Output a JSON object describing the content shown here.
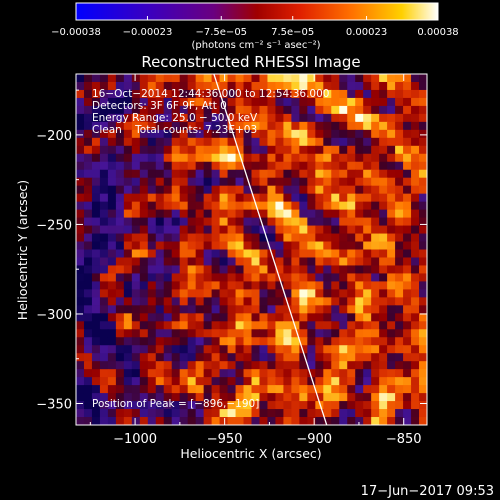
{
  "chart_data": {
    "type": "heatmap",
    "title": "Reconstructed RHESSI Image",
    "xlabel": "Heliocentric X (arcsec)",
    "ylabel": "Heliocentric Y (arcsec)",
    "xlim": [
      -1033,
      -837
    ],
    "ylim": [
      -362,
      -166
    ],
    "xticks": [
      -1000,
      -950,
      -900,
      -850
    ],
    "xtick_labels": [
      "−1000",
      "−950",
      "−900",
      "−850"
    ],
    "yticks": [
      -200,
      -250,
      -300,
      -350
    ],
    "ytick_labels": [
      "−200",
      "−250",
      "−300",
      "−350"
    ],
    "colorbar": {
      "range": [
        -0.00038,
        0.00038
      ],
      "ticks": [
        -0.00038,
        -0.00023,
        -7.5e-05,
        7.5e-05,
        0.00023,
        0.00038
      ],
      "tick_labels": [
        "−0.00038",
        "−0.00023",
        "−7.5e−05",
        "7.5e−05",
        "0.00023",
        "0.00038"
      ],
      "unit_label": "(photons cm⁻² s⁻¹ asec⁻²)",
      "colormap": "blue-purple-red-orange-yellow-white"
    },
    "annotations": {
      "time_range": "16−Oct−2014 12:44:36.000 to 12:54:36.000",
      "detectors": "Detectors: 3F 6F 9F, Att 0",
      "energy_range": "Energy Range: 25.0 − 50.0 keV",
      "clean_counts": "Clean    Total counts: 7.23E+03",
      "peak_position": "Position of Peak = [−896,−190]"
    },
    "limb_line": [
      {
        "x": -956,
        "y": -166
      },
      {
        "x": -893,
        "y": -362
      }
    ],
    "grid": false,
    "legend": "none"
  },
  "timestamp": "17−Jun−2017 09:53"
}
